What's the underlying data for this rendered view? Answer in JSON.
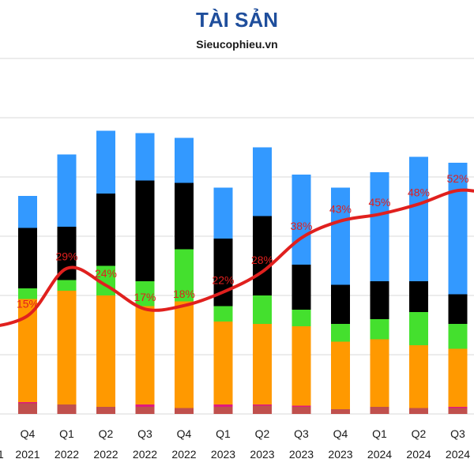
{
  "header": {
    "title": "TÀI SẢN",
    "subtitle": "Sieucophieu.vn"
  },
  "chart_data": {
    "type": "bar",
    "stacked": true,
    "ylim": [
      0,
      450
    ],
    "grid": true,
    "legend": "none",
    "title": "TÀI SẢN",
    "subtitle": "Sieucophieu.vn",
    "categories": [
      {
        "q": "Q4",
        "y": "2021"
      },
      {
        "q": "Q1",
        "y": "2022"
      },
      {
        "q": "Q2",
        "y": "2022"
      },
      {
        "q": "Q3",
        "y": "2022"
      },
      {
        "q": "Q4",
        "y": "2022"
      },
      {
        "q": "Q1",
        "y": "2023"
      },
      {
        "q": "Q2",
        "y": "2023"
      },
      {
        "q": "Q3",
        "y": "2023"
      },
      {
        "q": "Q4",
        "y": "2023"
      },
      {
        "q": "Q1",
        "y": "2024"
      },
      {
        "q": "Q2",
        "y": "2024"
      },
      {
        "q": "Q3",
        "y": "2024"
      }
    ],
    "partial_edge_labels": {
      "left_year_fragment": "1",
      "right_year_fragment": "2024"
    },
    "series": [
      {
        "color": "#c0504d",
        "values": [
          9,
          8,
          6,
          6,
          5,
          6,
          7,
          6,
          4,
          6,
          5,
          5
        ]
      },
      {
        "color": "#e0197d",
        "values": [
          1,
          0,
          0,
          2,
          0,
          2,
          1,
          1,
          0,
          0,
          0,
          1
        ]
      },
      {
        "color": "#ff9900",
        "values": [
          87,
          96,
          94,
          83,
          90,
          70,
          68,
          67,
          57,
          57,
          53,
          49
        ]
      },
      {
        "color": "#44e02e",
        "values": [
          9,
          9,
          25,
          21,
          44,
          13,
          24,
          14,
          15,
          17,
          28,
          21
        ]
      },
      {
        "color": "#000000",
        "values": [
          51,
          45,
          61,
          85,
          56,
          57,
          67,
          38,
          33,
          32,
          26,
          25
        ]
      },
      {
        "color": "#3399ff",
        "values": [
          27,
          61,
          53,
          40,
          38,
          43,
          58,
          76,
          82,
          92,
          105,
          111
        ]
      }
    ],
    "line": {
      "color": "#e0201e",
      "label_color": "#e0201e",
      "labels": [
        "15%",
        "29%",
        "24%",
        "17%",
        "18%",
        "22%",
        "28%",
        "38%",
        "43%",
        "45%",
        "48%",
        "52%"
      ],
      "values": [
        15,
        29,
        24,
        17,
        18,
        22,
        28,
        38,
        43,
        45,
        48,
        52
      ],
      "ylim": [
        0,
        80
      ]
    },
    "colors": {
      "grid": "#d9d9d9",
      "tick_text": "#1a1a1a"
    }
  }
}
